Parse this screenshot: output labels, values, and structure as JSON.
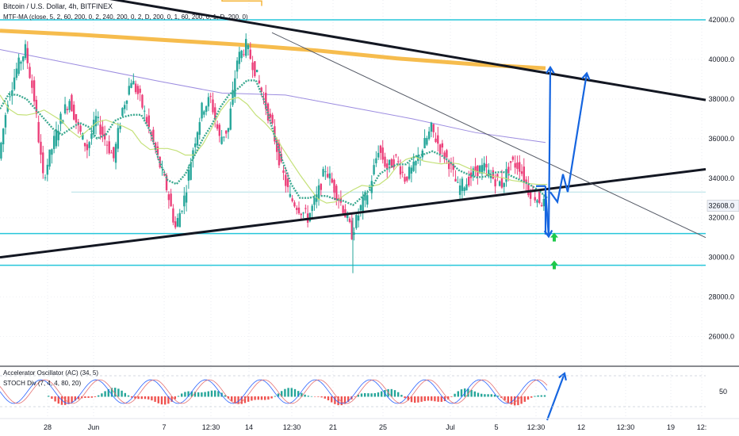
{
  "chart_data": {
    "type": "candlestick",
    "symbol_title": "Bitcoin / U.S. Dollar, 4h, BITFINEX",
    "indicator_label": "MTF-MA (close, 5, 2, 60, 200, 0, 2, 240, 200, 0, 2, D, 200, 0, 1, 60, 200, 0, 1, D, 200, 0)",
    "price_axis": {
      "ticks": [
        "42000.0",
        "40000.0",
        "38000.0",
        "36000.0",
        "34000.0",
        "32000.0",
        "30000.0",
        "28000.0",
        "26000.0"
      ],
      "tick_values": [
        42000,
        40000,
        38000,
        36000,
        34000,
        32000,
        30000,
        28000,
        26000
      ],
      "range": [
        24500,
        43000
      ],
      "current_price_label": "32608.0",
      "current_price": 32608
    },
    "time_axis": {
      "labels": [
        "28",
        "Jun",
        "7",
        "12:30",
        "14",
        "12:30",
        "21",
        "25",
        "Jul",
        "5",
        "12:30",
        "12",
        "12:30",
        "19",
        "12:"
      ]
    },
    "horizontal_levels": [
      42000,
      31200,
      29600
    ],
    "trendlines": [
      {
        "name": "upper",
        "points": [
          [
            0,
            44000
          ],
          [
            890,
            37950
          ]
        ]
      },
      {
        "name": "lower",
        "points": [
          [
            0,
            30000
          ],
          [
            890,
            34450
          ]
        ]
      },
      {
        "name": "thin",
        "points": [
          [
            343,
            41350
          ],
          [
            890,
            31000
          ]
        ]
      }
    ],
    "price_series": [
      35000,
      38000,
      39500,
      40500,
      38000,
      34000,
      35500,
      37000,
      38000,
      36500,
      35500,
      37000,
      36000,
      35000,
      37500,
      39000,
      38000,
      36500,
      35000,
      33500,
      31500,
      33000,
      35500,
      37500,
      38000,
      36000,
      36500,
      40000,
      40700,
      39500,
      38000,
      36500,
      34500,
      33000,
      32500,
      32000,
      33000,
      34500,
      33500,
      32500,
      31200,
      32500,
      33500,
      35500,
      34500,
      35000,
      34000,
      34500,
      35500,
      36500,
      35500,
      34800,
      33500,
      33800,
      34400,
      34500,
      34000,
      33700,
      34800,
      34600,
      33400,
      33000,
      32600
    ],
    "series_span": [
      0,
      690
    ],
    "annotations": {
      "arrows_blue": [
        {
          "from": [
            676,
            33600
          ],
          "to": [
            676,
            31100
          ]
        },
        {
          "from": [
            694,
            32600
          ],
          "to": [
            694,
            39600
          ]
        },
        {
          "from": [
            700,
            32800
          ],
          "to": [
            716,
            34600
          ]
        },
        {
          "from": [
            716,
            34600
          ],
          "to": [
            740,
            39300
          ]
        }
      ],
      "green_up_arrows": [
        31000,
        29600
      ]
    },
    "oscillator": {
      "label_ac": "Accelerator Oscillator (AC) (34, 5)",
      "label_stoch": "STOCH Div (7, 4, 4, 80, 20)",
      "axis_tick": "50"
    }
  }
}
